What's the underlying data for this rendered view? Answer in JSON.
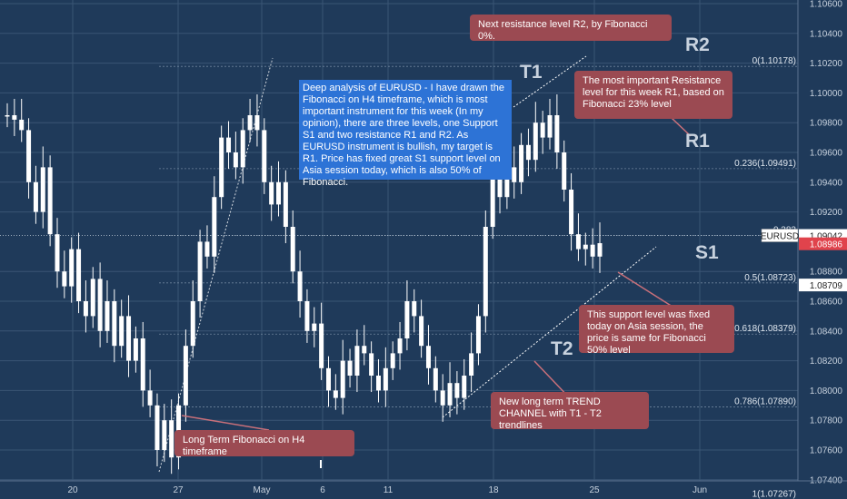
{
  "chart_data": {
    "type": "candlestick",
    "instrument": "EURUSD",
    "timeframe": "H4",
    "price_axis": {
      "ylim": [
        1.073,
        1.106
      ],
      "ticks": [
        "1.10600",
        "1.10400",
        "1.10200",
        "1.10000",
        "1.09800",
        "1.09600",
        "1.09400",
        "1.09200",
        "1.08800",
        "1.08600",
        "1.08400",
        "1.08200",
        "1.08000",
        "1.07800",
        "1.07600",
        "1.07400"
      ],
      "tick_values": [
        1.106,
        1.104,
        1.102,
        1.1,
        1.098,
        1.096,
        1.094,
        1.092,
        1.088,
        1.086,
        1.084,
        1.082,
        1.08,
        1.078,
        1.076,
        1.074
      ],
      "labels": [
        {
          "symbol": "EURUSD",
          "value": "1.09042",
          "price": 1.09042,
          "color": "#ffffff",
          "text_color": "#222222"
        },
        {
          "value": "1.08986",
          "price": 1.08986,
          "color": "#e0434c",
          "text_color": "#ffffff"
        },
        {
          "value": "1.08709",
          "price": 1.08709,
          "color": "#ffffff",
          "text_color": "#222222"
        }
      ]
    },
    "time_axis": [
      "20",
      "27",
      "May",
      "6",
      "11",
      "18",
      "25",
      "Jun"
    ],
    "fibonacci": [
      {
        "ratio": "0",
        "label": "0(1.10178)",
        "price": 1.10178
      },
      {
        "ratio": "0.236",
        "label": "0.236(1.09491)",
        "price": 1.09491
      },
      {
        "ratio": "0.382",
        "label": "0.382",
        "price": 1.09042
      },
      {
        "ratio": "0.5",
        "label": "0.5(1.08723)",
        "price": 1.08723
      },
      {
        "ratio": "0.618",
        "label": "0.618(1.08379)",
        "price": 1.08379
      },
      {
        "ratio": "0.786",
        "label": "0.786(1.07890)",
        "price": 1.0789
      },
      {
        "ratio": "1",
        "label": "1(1.07267)",
        "price": 1.07267
      }
    ],
    "levels": [
      {
        "name": "R2",
        "price": 1.10178
      },
      {
        "name": "R1",
        "price": 1.09491
      },
      {
        "name": "S1",
        "price": 1.08723
      }
    ],
    "trendlines": [
      {
        "name": "T1"
      },
      {
        "name": "T2"
      }
    ],
    "ohlc_path": [
      1.0985,
      1.0982,
      1.0975,
      1.094,
      1.092,
      1.095,
      1.0905,
      1.088,
      1.087,
      1.0895,
      1.086,
      1.085,
      1.0875,
      1.084,
      1.086,
      1.083,
      1.085,
      1.082,
      1.0835,
      1.08,
      1.079,
      1.076,
      1.078,
      1.0755,
      1.079,
      1.083,
      1.086,
      1.09,
      1.089,
      1.093,
      1.097,
      1.096,
      1.095,
      1.0975,
      1.0985,
      1.0975,
      1.094,
      1.0925,
      1.094,
      1.091,
      1.088,
      1.086,
      1.084,
      1.0845,
      1.0815,
      1.08,
      1.0795,
      1.082,
      1.081,
      1.083,
      1.0825,
      1.081,
      1.08,
      1.0815,
      1.0825,
      1.0835,
      1.086,
      1.085,
      1.083,
      1.0815,
      1.08,
      1.079,
      1.0805,
      1.0795,
      1.081,
      1.0825,
      1.085,
      1.091,
      1.096,
      1.093,
      1.095,
      1.094,
      1.0965,
      1.0955,
      1.098,
      1.097,
      1.0985,
      1.096,
      1.0935,
      1.0905,
      1.0895,
      1.0898,
      1.089,
      1.0899
    ]
  },
  "annotations": {
    "analysis": "Deep analysis of EURUSD - I have drawn the Fibonacci on H4 timeframe, which is most important instrument for this week (In my opinion), there are three levels, one Support S1 and two resistance R1 and R2. As EURUSD instrument is bullish, my target is R1. Price has fixed great S1 support level on Asia session today, which is also 50% of Fibonacci.",
    "r2_note": "Next resistance level R2, by Fibonacci 0%.",
    "r1_note": "The most important Resistance level for this week R1, based on Fibonacci 23% level",
    "s1_note": "This support level was fixed today on Asia session, the price is same for Fibonacci 50% level",
    "trend_note": "New long term TREND CHANNEL with T1 - T2 trendlines",
    "fib_note": "Long Term Fibonacci on H4 timeframe",
    "labels": {
      "r2": "R2",
      "r1": "R1",
      "s1": "S1",
      "t1": "T1",
      "t2": "T2"
    }
  },
  "colors": {
    "background": "#1f3a5a",
    "grid": "#3a5574",
    "candle": "#ffffff",
    "note_bg": "#9b4a52",
    "analysis_bg": "#2d73d6",
    "axis_text": "#c8d2de"
  }
}
